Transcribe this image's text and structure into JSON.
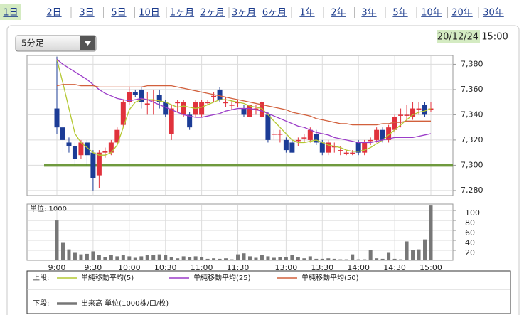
{
  "tabs": [
    "1日",
    "2日",
    "3日",
    "5日",
    "10日",
    "1ヶ月",
    "2ヶ月",
    "3ヶ月",
    "6ヶ月",
    "1年",
    "2年",
    "3年",
    "5年",
    "10年",
    "20年",
    "30年"
  ],
  "selected_tab": 0,
  "dropdown": "5分足",
  "timestamp": {
    "date": "20/12/24",
    "time": "15:00"
  },
  "legend": {
    "upper": "上段:",
    "lower": "下段:"
  },
  "chart_data": [
    {
      "type": "candlestick",
      "up_color": "#e0323c",
      "down_color": "#1c3c96",
      "grid": true,
      "ylim": [
        7276,
        7387
      ],
      "yticks": [
        {
          "value": 7280,
          "label": "7,280"
        },
        {
          "value": 7300,
          "label": "7,300"
        },
        {
          "value": 7320,
          "label": "7,320"
        },
        {
          "value": 7340,
          "label": "7,340"
        },
        {
          "value": 7360,
          "label": "7,360"
        },
        {
          "value": 7380,
          "label": "7,380"
        }
      ],
      "reference_line": {
        "value": 7300,
        "color": "#6f9a3e"
      },
      "ohlc": [
        [
          7345,
          7386,
          7325,
          7330
        ],
        [
          7330,
          7335,
          7310,
          7320
        ],
        [
          7318,
          7322,
          7310,
          7315
        ],
        [
          7315,
          7318,
          7300,
          7305
        ],
        [
          7308,
          7320,
          7305,
          7318
        ],
        [
          7318,
          7320,
          7300,
          7308
        ],
        [
          7310,
          7312,
          7280,
          7290
        ],
        [
          7292,
          7312,
          7282,
          7310
        ],
        [
          7310,
          7314,
          7306,
          7311
        ],
        [
          7310,
          7320,
          7308,
          7318
        ],
        [
          7318,
          7330,
          7316,
          7328
        ],
        [
          7332,
          7352,
          7330,
          7350
        ],
        [
          7350,
          7362,
          7348,
          7358
        ],
        [
          7358,
          7360,
          7354,
          7356
        ],
        [
          7360,
          7362,
          7345,
          7350
        ],
        [
          7348,
          7358,
          7340,
          7349
        ],
        [
          7352,
          7360,
          7340,
          7352
        ],
        [
          7356,
          7360,
          7345,
          7350
        ],
        [
          7350,
          7352,
          7338,
          7340
        ],
        [
          7325,
          7348,
          7320,
          7345
        ],
        [
          7350,
          7352,
          7342,
          7350
        ],
        [
          7340,
          7352,
          7338,
          7350
        ],
        [
          7340,
          7342,
          7328,
          7330
        ],
        [
          7340,
          7352,
          7338,
          7350
        ],
        [
          7340,
          7352,
          7338,
          7350
        ],
        [
          7350,
          7352,
          7348,
          7350
        ],
        [
          7355,
          7358,
          7350,
          7355
        ],
        [
          7360,
          7362,
          7350,
          7352
        ],
        [
          7350,
          7354,
          7346,
          7350
        ],
        [
          7348,
          7352,
          7344,
          7348
        ],
        [
          7350,
          7352,
          7346,
          7350
        ],
        [
          7345,
          7348,
          7338,
          7340
        ],
        [
          7338,
          7350,
          7336,
          7348
        ],
        [
          7345,
          7348,
          7340,
          7345
        ],
        [
          7338,
          7352,
          7336,
          7350
        ],
        [
          7340,
          7342,
          7318,
          7320
        ],
        [
          7325,
          7328,
          7320,
          7325
        ],
        [
          7325,
          7328,
          7318,
          7325
        ],
        [
          7320,
          7322,
          7310,
          7312
        ],
        [
          7318,
          7320,
          7310,
          7310
        ],
        [
          7320,
          7322,
          7315,
          7320
        ],
        [
          7322,
          7325,
          7318,
          7322
        ],
        [
          7320,
          7330,
          7318,
          7328
        ],
        [
          7325,
          7328,
          7316,
          7318
        ],
        [
          7318,
          7320,
          7308,
          7310
        ],
        [
          7310,
          7320,
          7308,
          7318
        ],
        [
          7315,
          7318,
          7310,
          7315
        ],
        [
          7312,
          7315,
          7308,
          7312
        ],
        [
          7310,
          7312,
          7308,
          7310
        ],
        [
          7310,
          7312,
          7308,
          7310
        ],
        [
          7318,
          7320,
          7308,
          7310
        ],
        [
          7310,
          7320,
          7308,
          7318
        ],
        [
          7320,
          7322,
          7316,
          7320
        ],
        [
          7320,
          7330,
          7318,
          7328
        ],
        [
          7328,
          7330,
          7318,
          7320
        ],
        [
          7320,
          7332,
          7318,
          7330
        ],
        [
          7328,
          7340,
          7326,
          7338
        ],
        [
          7340,
          7345,
          7330,
          7340
        ],
        [
          7340,
          7348,
          7336,
          7340
        ],
        [
          7338,
          7350,
          7336,
          7345
        ],
        [
          7345,
          7350,
          7340,
          7345
        ],
        [
          7348,
          7350,
          7338,
          7340
        ],
        [
          7345,
          7350,
          7342,
          7345
        ]
      ],
      "series": [
        {
          "name": "単純移動平均(5)",
          "color": "#b4c832",
          "values": [
            7384,
            7365,
            7345,
            7325,
            7318,
            7314,
            7310,
            7308,
            7308,
            7310,
            7316,
            7330,
            7344,
            7350,
            7352,
            7352,
            7352,
            7351,
            7350,
            7348,
            7346,
            7347,
            7346,
            7345,
            7346,
            7348,
            7350,
            7352,
            7352,
            7351,
            7350,
            7349,
            7347,
            7346,
            7345,
            7340,
            7335,
            7330,
            7325,
            7320,
            7318,
            7318,
            7319,
            7320,
            7318,
            7316,
            7315,
            7314,
            7312,
            7311,
            7311,
            7312,
            7314,
            7317,
            7320,
            7324,
            7328,
            7332,
            7336,
            7340,
            7342,
            7343,
            7345
          ]
        },
        {
          "name": "単純移動平均(25)",
          "color": "#9b3cc8",
          "values": [
            7384,
            7380,
            7377,
            7374,
            7371,
            7368,
            7364,
            7360,
            7357,
            7355,
            7353,
            7352,
            7351,
            7352,
            7353,
            7352,
            7350,
            7348,
            7346,
            7344,
            7342,
            7340,
            7339,
            7338,
            7338,
            7339,
            7340,
            7341,
            7343,
            7344,
            7345,
            7345,
            7345,
            7344,
            7343,
            7341,
            7339,
            7337,
            7335,
            7333,
            7331,
            7330,
            7328,
            7326,
            7325,
            7324,
            7322,
            7321,
            7320,
            7319,
            7318,
            7318,
            7318,
            7319,
            7320,
            7321,
            7322,
            7322,
            7322,
            7322,
            7323,
            7324,
            7325
          ]
        },
        {
          "name": "単純移動平均(50)",
          "color": "#d2603c",
          "values": [
            7363,
            7364,
            7364,
            7364,
            7363,
            7363,
            7363,
            7362,
            7362,
            7362,
            7362,
            7362,
            7362,
            7362,
            7362,
            7363,
            7363,
            7363,
            7363,
            7363,
            7362,
            7361,
            7360,
            7359,
            7358,
            7357,
            7356,
            7355,
            7354,
            7353,
            7352,
            7351,
            7350,
            7349,
            7348,
            7347,
            7346,
            7345,
            7344,
            7342,
            7341,
            7340,
            7339,
            7337,
            7336,
            7335,
            7334,
            7333,
            7333,
            7332,
            7332,
            7332,
            7332,
            7332,
            7333,
            7333,
            7334,
            7334,
            7335,
            7335,
            7335,
            7335,
            7335
          ]
        }
      ]
    },
    {
      "type": "bar",
      "title": "単位: 1000",
      "grid": true,
      "ylim": [
        0,
        113
      ],
      "yticks": [
        20,
        40,
        60,
        80,
        100
      ],
      "categories": [
        "9:00",
        null,
        null,
        null,
        null,
        null,
        "9:30",
        null,
        null,
        null,
        null,
        null,
        "10:00",
        null,
        null,
        null,
        null,
        null,
        "10:30",
        null,
        null,
        null,
        null,
        null,
        "11:00",
        null,
        null,
        null,
        null,
        null,
        "11:30",
        null,
        null,
        null,
        null,
        null,
        null,
        null,
        "13:00",
        null,
        null,
        null,
        null,
        null,
        "13:30",
        null,
        null,
        null,
        null,
        null,
        "14:00",
        null,
        null,
        null,
        null,
        null,
        "14:30",
        null,
        null,
        null,
        null,
        null,
        "15:00"
      ],
      "series": [
        {
          "name": "出来高 単位(1000株/口/枚)",
          "color": "#777777",
          "values": [
            80,
            35,
            22,
            15,
            12,
            13,
            18,
            10,
            6,
            10,
            8,
            10,
            8,
            5,
            8,
            10,
            10,
            12,
            10,
            6,
            4,
            8,
            6,
            8,
            6,
            3,
            4,
            3,
            4,
            2,
            12,
            14,
            8,
            5,
            10,
            8,
            5,
            6,
            6,
            10,
            6,
            4,
            8,
            3,
            3,
            4,
            3,
            2,
            2,
            12,
            2,
            2,
            20,
            4,
            3,
            15,
            3,
            2,
            38,
            20,
            22,
            42,
            110
          ]
        }
      ]
    }
  ]
}
